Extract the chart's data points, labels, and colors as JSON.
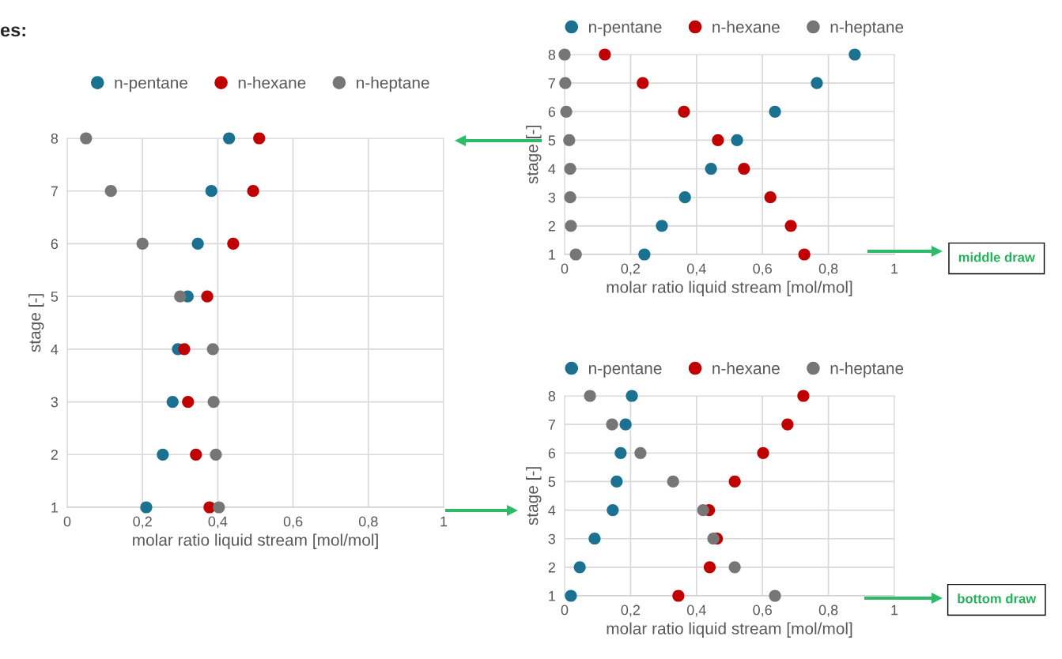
{
  "chart_data": [
    {
      "type": "scatter",
      "xlabel": "molar ratio liquid stream [mol/mol]",
      "ylabel": "stage [-]",
      "xlim": [
        0,
        1
      ],
      "xticks": [
        0,
        {
          "value": 0.2,
          "label": "0,2"
        },
        {
          "value": 0.4,
          "label": "0,4"
        },
        {
          "value": 0.6,
          "label": "0,6"
        },
        {
          "value": 0.8,
          "label": "0,8"
        },
        1
      ],
      "ylim": [
        1,
        8
      ],
      "yticks": [
        1,
        2,
        3,
        4,
        5,
        6,
        7,
        8
      ],
      "grid": true,
      "legend": "top",
      "marker": "circle",
      "annotations": [
        "es:"
      ],
      "series": [
        {
          "name": "n-pentane",
          "color": "#1a7190",
          "x": [
            0.21,
            0.254,
            0.28,
            0.294,
            0.32,
            0.347,
            0.383,
            0.43
          ],
          "values": [
            1,
            2,
            3,
            4,
            5,
            6,
            7,
            8
          ]
        },
        {
          "name": "n-hexane",
          "color": "#c00000",
          "x": [
            0.378,
            0.342,
            0.321,
            0.311,
            0.372,
            0.441,
            0.494,
            0.51
          ],
          "values": [
            1,
            2,
            3,
            4,
            5,
            6,
            7,
            8
          ]
        },
        {
          "name": "n-heptane",
          "color": "#767676",
          "x": [
            0.403,
            0.395,
            0.389,
            0.387,
            0.3,
            0.2,
            0.116,
            0.05
          ],
          "values": [
            1,
            2,
            3,
            4,
            5,
            6,
            7,
            8
          ]
        }
      ]
    },
    {
      "type": "scatter",
      "xlabel": "molar ratio liquid stream [mol/mol]",
      "ylabel": "stage [-]",
      "xlim": [
        0,
        1
      ],
      "xticks": [
        0,
        {
          "value": 0.2,
          "label": "0,2"
        },
        {
          "value": 0.4,
          "label": "0,4"
        },
        {
          "value": 0.6,
          "label": "0,6"
        },
        {
          "value": 0.8,
          "label": "0,8"
        },
        1
      ],
      "ylim": [
        1,
        8
      ],
      "yticks": [
        1,
        2,
        3,
        4,
        5,
        6,
        7,
        8
      ],
      "grid": true,
      "legend": "top",
      "marker": "circle",
      "annotations": [
        "middle draw"
      ],
      "series": [
        {
          "name": "n-pentane",
          "color": "#1a7190",
          "x": [
            0.242,
            0.295,
            0.365,
            0.444,
            0.523,
            0.638,
            0.765,
            0.88
          ],
          "values": [
            1,
            2,
            3,
            4,
            5,
            6,
            7,
            8
          ]
        },
        {
          "name": "n-hexane",
          "color": "#c00000",
          "x": [
            0.727,
            0.686,
            0.624,
            0.544,
            0.465,
            0.362,
            0.237,
            0.122
          ],
          "values": [
            1,
            2,
            3,
            4,
            5,
            6,
            7,
            8
          ]
        },
        {
          "name": "n-heptane",
          "color": "#767676",
          "x": [
            0.034,
            0.019,
            0.017,
            0.017,
            0.014,
            0.005,
            0.002,
            0
          ],
          "values": [
            1,
            2,
            3,
            4,
            5,
            6,
            7,
            8
          ]
        }
      ]
    },
    {
      "type": "scatter",
      "xlabel": "molar ratio liquid stream [mol/mol]",
      "ylabel": "stage [-]",
      "xlim": [
        0,
        1
      ],
      "xticks": [
        0,
        {
          "value": 0.2,
          "label": "0,2"
        },
        {
          "value": 0.4,
          "label": "0,4"
        },
        {
          "value": 0.6,
          "label": "0,6"
        },
        {
          "value": 0.8,
          "label": "0,8"
        },
        1
      ],
      "ylim": [
        1,
        8
      ],
      "yticks": [
        1,
        2,
        3,
        4,
        5,
        6,
        7,
        8
      ],
      "grid": true,
      "legend": "top",
      "marker": "circle",
      "annotations": [
        "bottom draw"
      ],
      "series": [
        {
          "name": "n-pentane",
          "color": "#1a7190",
          "x": [
            0.019,
            0.046,
            0.091,
            0.146,
            0.158,
            0.17,
            0.185,
            0.204
          ],
          "values": [
            1,
            2,
            3,
            4,
            5,
            6,
            7,
            8
          ]
        },
        {
          "name": "n-hexane",
          "color": "#c00000",
          "x": [
            0.345,
            0.44,
            0.462,
            0.438,
            0.516,
            0.602,
            0.676,
            0.724
          ],
          "values": [
            1,
            2,
            3,
            4,
            5,
            6,
            7,
            8
          ]
        },
        {
          "name": "n-heptane",
          "color": "#767676",
          "x": [
            0.638,
            0.516,
            0.451,
            0.42,
            0.329,
            0.23,
            0.144,
            0.077
          ],
          "values": [
            1,
            2,
            3,
            4,
            5,
            6,
            7,
            8
          ]
        }
      ]
    }
  ]
}
